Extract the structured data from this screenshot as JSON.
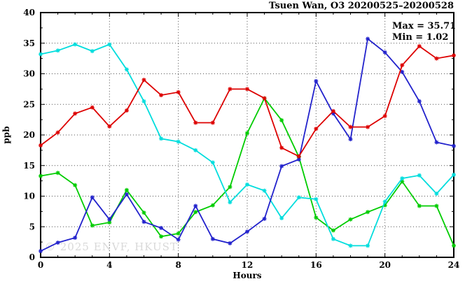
{
  "title": "Tsuen Wan, O3 20200525–20200528",
  "annotation": {
    "max_label": "Max = 35.71",
    "min_label": "Min =  1.02"
  },
  "watermark": "© 2025 ENVF, HKUST",
  "axes": {
    "xlabel": "Hours",
    "ylabel": "ppb",
    "x_tick_labels": [
      "0",
      "4",
      "8",
      "12",
      "16",
      "20",
      "24"
    ],
    "y_tick_labels": [
      "0",
      "5",
      "10",
      "15",
      "20",
      "25",
      "30",
      "35",
      "40"
    ]
  },
  "colors": {
    "red": "#dd0000",
    "blue": "#2222cc",
    "cyan": "#00dddd",
    "green": "#00cc00",
    "grid": "#555555",
    "frame": "#000000",
    "watermark_gray": "#d9d9d9"
  },
  "chart_data": {
    "type": "line",
    "title": "Tsuen Wan, O3 20200525–20200528",
    "xlabel": "Hours",
    "ylabel": "ppb",
    "xlim": [
      0,
      24
    ],
    "ylim": [
      0,
      40
    ],
    "grid": true,
    "legend": "none",
    "stat_max": 35.71,
    "stat_min": 1.02,
    "xticks_major": [
      0,
      4,
      8,
      12,
      16,
      20,
      24
    ],
    "yticks_major": [
      0,
      5,
      10,
      15,
      20,
      25,
      30,
      35,
      40
    ],
    "x": [
      0,
      1,
      2,
      3,
      4,
      5,
      6,
      7,
      8,
      9,
      10,
      11,
      12,
      13,
      14,
      15,
      16,
      17,
      18,
      19,
      20,
      21,
      22,
      23,
      24
    ],
    "series": [
      {
        "name": "green",
        "color": "#00cc00",
        "values": [
          13.3,
          13.8,
          11.8,
          5.2,
          5.7,
          11.0,
          7.3,
          3.4,
          3.9,
          7.4,
          8.5,
          11.5,
          20.3,
          26.0,
          22.4,
          16.4,
          6.5,
          4.4,
          6.2,
          7.4,
          8.5,
          12.4,
          8.4,
          8.4,
          1.9
        ]
      },
      {
        "name": "cyan",
        "color": "#00dddd",
        "values": [
          33.2,
          33.8,
          34.8,
          33.7,
          34.8,
          30.7,
          25.5,
          19.4,
          18.9,
          17.5,
          15.5,
          9.0,
          11.9,
          10.9,
          6.4,
          9.8,
          9.5,
          3.0,
          1.9,
          1.9,
          9.1,
          12.9,
          13.4,
          10.4,
          13.5
        ]
      },
      {
        "name": "blue",
        "color": "#2222cc",
        "values": [
          1.02,
          2.4,
          3.2,
          9.8,
          6.2,
          10.3,
          5.8,
          4.8,
          2.9,
          8.4,
          3.0,
          2.3,
          4.2,
          6.3,
          14.9,
          16.0,
          28.8,
          23.5,
          19.3,
          35.71,
          33.5,
          30.3,
          25.5,
          18.8,
          18.2
        ]
      },
      {
        "name": "red",
        "color": "#dd0000",
        "values": [
          18.3,
          20.4,
          23.5,
          24.5,
          21.4,
          24.0,
          29.0,
          26.5,
          27.0,
          22.0,
          22.0,
          27.5,
          27.5,
          26.0,
          17.9,
          16.5,
          21.0,
          23.9,
          21.3,
          21.3,
          23.1,
          31.4,
          34.5,
          32.5,
          33.0
        ]
      }
    ]
  }
}
